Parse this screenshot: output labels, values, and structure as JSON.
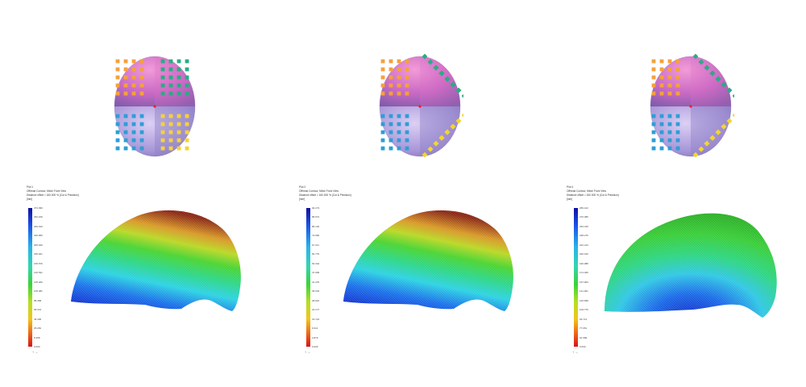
{
  "figure": {
    "views": [
      {
        "id": "view-1",
        "header": {
          "line1": "Plot 1",
          "line2": "Offhead Contour, Mesh Front View",
          "line3": "Distance offset = 160.000 % (Cut & Precision)",
          "line4": "[mm]"
        },
        "scale_ticks": [
          "273.396",
          "262.166",
          "246.016",
          "225.965",
          "205.946",
          "185.921",
          "165.576",
          "145.531",
          "125.406",
          "105.381",
          "85.358",
          "65.331",
          "45.306",
          "25.281",
          "5.358",
          "0.000"
        ],
        "color_ramp": "default",
        "pattern": "grid"
      },
      {
        "id": "view-2",
        "header": {
          "line1": "Plot 2",
          "line2": "Offhead Contour, Mesh Front View",
          "line3": "Distance offset = 160.000 % (Cut & Precision)",
          "line4": "[mm]"
        },
        "scale_ticks": [
          "92.173",
          "86.572",
          "80.130",
          "73.682",
          "67.211",
          "60.770",
          "54.342",
          "47.909",
          "41.476",
          "35.043",
          "28.610",
          "22.177",
          "15.742",
          "9.311",
          "2.879",
          "0.000"
        ],
        "color_ramp": "default",
        "pattern": "rotated"
      },
      {
        "id": "view-3",
        "header": {
          "line1": "Plot 4",
          "line2": "Offhead Contour, Mesh Front View",
          "line3": "Distance offset = 160.000 % (Cut & Precision)",
          "line4": "[mm]"
        },
        "scale_ticks": [
          "283.122",
          "270.389",
          "254.315",
          "238.275",
          "222.213",
          "206.150",
          "190.088",
          "174.025",
          "157.963",
          "141.901",
          "125.838",
          "109.776",
          "93.714",
          "77.651",
          "61.589",
          "0.000"
        ],
        "color_ramp": "default",
        "pattern": "rotated"
      }
    ],
    "axis_labels": {
      "y": "Y",
      "x": "X"
    },
    "colors": {
      "orange": "#f4a13f",
      "green": "#2bab86",
      "blue": "#2a9fd8",
      "yellow": "#f5d52b",
      "head_pink": "#c85ab9",
      "head_lilac": "#b69ce0",
      "center": "#e8202b"
    }
  }
}
